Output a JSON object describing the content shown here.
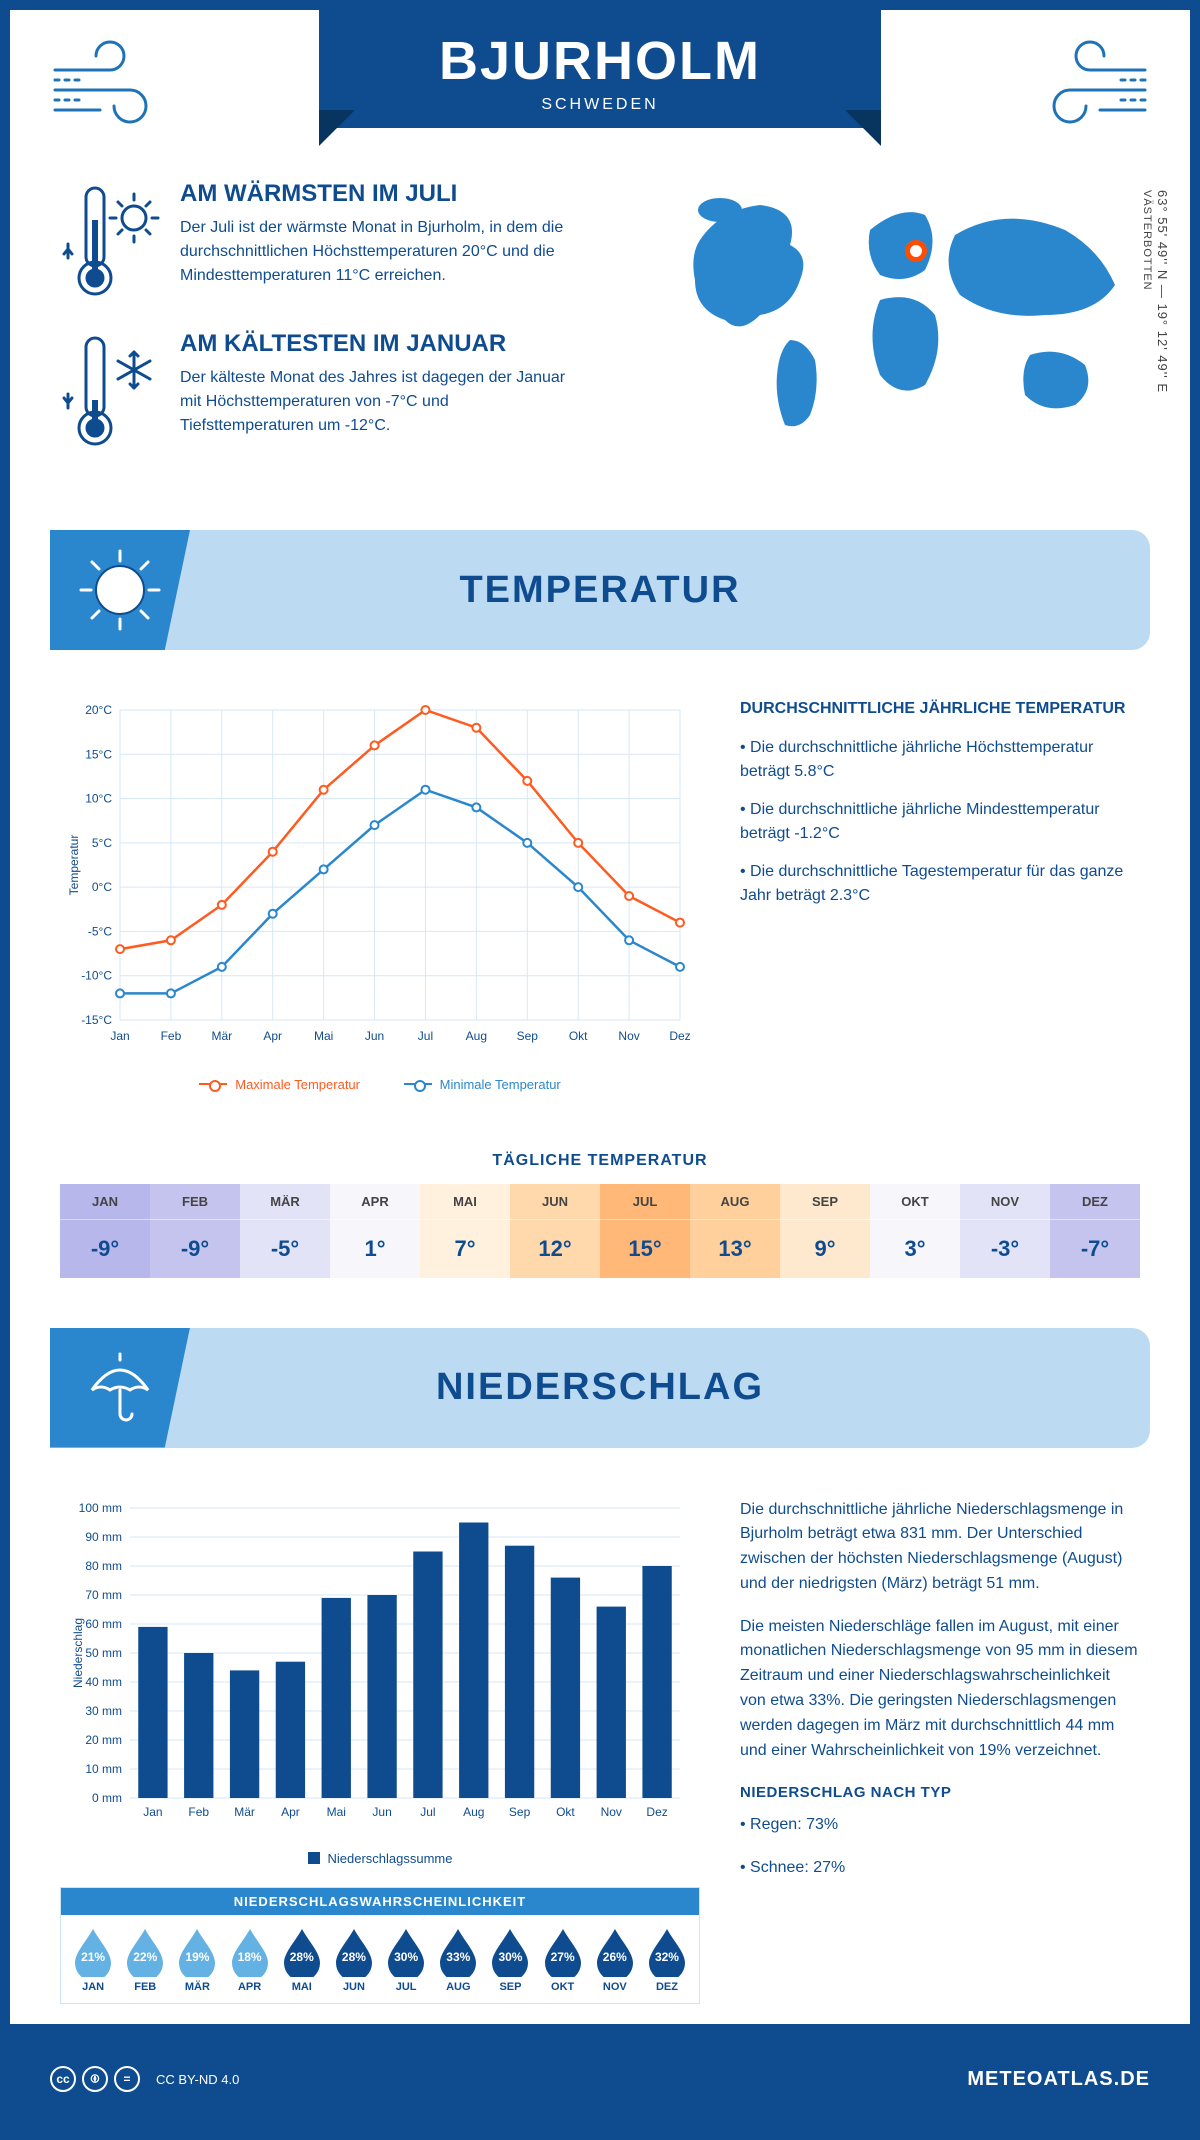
{
  "header": {
    "city": "BJURHOLM",
    "country": "SCHWEDEN",
    "coordinates": "63° 55' 49'' N — 19° 12' 49'' E",
    "region": "VÄSTERBOTTEN"
  },
  "facts": {
    "warm": {
      "title": "AM WÄRMSTEN IM JULI",
      "text": "Der Juli ist der wärmste Monat in Bjurholm, in dem die durchschnittlichen Höchsttemperaturen 20°C und die Mindesttemperaturen 11°C erreichen."
    },
    "cold": {
      "title": "AM KÄLTESTEN IM JANUAR",
      "text": "Der kälteste Monat des Jahres ist dagegen der Januar mit Höchsttemperaturen von -7°C und Tiefsttemperaturen um -12°C."
    }
  },
  "sections": {
    "temperature": "TEMPERATUR",
    "precipitation": "NIEDERSCHLAG"
  },
  "temp_chart": {
    "type": "line",
    "months": [
      "Jan",
      "Feb",
      "Mär",
      "Apr",
      "Mai",
      "Jun",
      "Jul",
      "Aug",
      "Sep",
      "Okt",
      "Nov",
      "Dez"
    ],
    "max_series": [
      -7,
      -6,
      -2,
      4,
      11,
      16,
      20,
      18,
      12,
      5,
      -1,
      -4
    ],
    "min_series": [
      -12,
      -12,
      -9,
      -3,
      2,
      7,
      11,
      9,
      5,
      0,
      -6,
      -9
    ],
    "max_color": "#ff5a1f",
    "min_color": "#2b87cd",
    "ylabel": "Temperatur",
    "ymin": -15,
    "ymax": 20,
    "ystep": 5,
    "grid_color": "#d6e7f5",
    "legend_max": "Maximale Temperatur",
    "legend_min": "Minimale Temperatur"
  },
  "temp_text": {
    "heading": "DURCHSCHNITTLICHE JÄHRLICHE TEMPERATUR",
    "bullets": [
      "• Die durchschnittliche jährliche Höchsttemperatur beträgt 5.8°C",
      "• Die durchschnittliche jährliche Mindesttemperatur beträgt -1.2°C",
      "• Die durchschnittliche Tagestemperatur für das ganze Jahr beträgt 2.3°C"
    ]
  },
  "daily": {
    "title": "TÄGLICHE TEMPERATUR",
    "months": [
      "JAN",
      "FEB",
      "MÄR",
      "APR",
      "MAI",
      "JUN",
      "JUL",
      "AUG",
      "SEP",
      "OKT",
      "NOV",
      "DEZ"
    ],
    "values": [
      "-9°",
      "-9°",
      "-5°",
      "1°",
      "7°",
      "12°",
      "15°",
      "13°",
      "9°",
      "3°",
      "-3°",
      "-7°"
    ],
    "colors": [
      "#b7b7ec",
      "#c4c4ef",
      "#e3e3f7",
      "#f6f6fb",
      "#fff1dd",
      "#ffd8ac",
      "#ffb877",
      "#ffcf9c",
      "#ffe9ce",
      "#f6f6fb",
      "#e3e3f7",
      "#c4c4ef"
    ]
  },
  "precip_chart": {
    "type": "bar",
    "months": [
      "Jan",
      "Feb",
      "Mär",
      "Apr",
      "Mai",
      "Jun",
      "Jul",
      "Aug",
      "Sep",
      "Okt",
      "Nov",
      "Dez"
    ],
    "values": [
      59,
      50,
      44,
      47,
      69,
      70,
      85,
      95,
      87,
      76,
      66,
      80
    ],
    "bar_color": "#0f4c8f",
    "ylabel": "Niederschlag",
    "ymax": 100,
    "ystep": 10,
    "grid_color": "#d6e7f5",
    "legend": "Niederschlagssumme"
  },
  "precip_text": {
    "p1": "Die durchschnittliche jährliche Niederschlagsmenge in Bjurholm beträgt etwa 831 mm. Der Unterschied zwischen der höchsten Niederschlagsmenge (August) und der niedrigsten (März) beträgt 51 mm.",
    "p2": "Die meisten Niederschläge fallen im August, mit einer monatlichen Niederschlagsmenge von 95 mm in diesem Zeitraum und einer Niederschlagswahrscheinlichkeit von etwa 33%. Die geringsten Niederschlagsmengen werden dagegen im März mit durchschnittlich 44 mm und einer Wahrscheinlichkeit von 19% verzeichnet.",
    "type_heading": "NIEDERSCHLAG NACH TYP",
    "type_bullets": [
      "• Regen: 73%",
      "• Schnee: 27%"
    ]
  },
  "probability": {
    "title": "NIEDERSCHLAGSWAHRSCHEINLICHKEIT",
    "months": [
      "JAN",
      "FEB",
      "MÄR",
      "APR",
      "MAI",
      "JUN",
      "JUL",
      "AUG",
      "SEP",
      "OKT",
      "NOV",
      "DEZ"
    ],
    "pct": [
      "21%",
      "22%",
      "19%",
      "18%",
      "28%",
      "28%",
      "30%",
      "33%",
      "30%",
      "27%",
      "26%",
      "32%"
    ],
    "light_color": "#64b1e4",
    "dark_color": "#0f4c8f",
    "dark_from_index": 4
  },
  "footer": {
    "license": "CC BY-ND 4.0",
    "site": "METEOATLAS.DE"
  },
  "map_marker": {
    "left_pct": 51,
    "top_pct": 20
  }
}
